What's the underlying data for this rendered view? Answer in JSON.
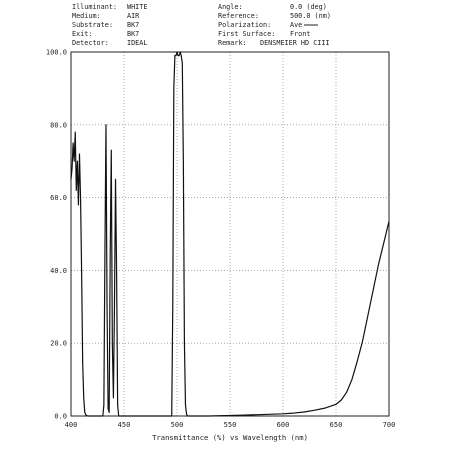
{
  "header": {
    "left": [
      {
        "label": "Illuminant:",
        "value": "WHITE"
      },
      {
        "label": "Medium:",
        "value": "AIR"
      },
      {
        "label": "Substrate:",
        "value": "BK7"
      },
      {
        "label": "Exit:",
        "value": "BK7"
      },
      {
        "label": "Detector:",
        "value": "IDEAL"
      }
    ],
    "right": [
      {
        "label": "Angle:",
        "value": "0.0 (deg)"
      },
      {
        "label": "Reference:",
        "value": "500.0 (nm)"
      },
      {
        "label": "Polarization:",
        "value": "Ave"
      },
      {
        "label": "First Surface:",
        "value": "Front"
      },
      {
        "label": "Remark:",
        "value": "DENSMEIER HD CIII"
      }
    ]
  },
  "chart_data": {
    "type": "line",
    "title": "",
    "xlabel": "Transmittance (%)   vs   Wavelength (nm)",
    "ylabel": "",
    "xlim": [
      400,
      700
    ],
    "ylim": [
      0,
      100
    ],
    "x_ticks": [
      "400",
      "450",
      "500",
      "550",
      "600",
      "650",
      "700"
    ],
    "y_ticks": [
      "0.0",
      "20.0",
      "40.0",
      "60.0",
      "80.0",
      "100.0"
    ],
    "grid": true,
    "grid_style": "dotted",
    "line_color": "#111111",
    "series": [
      {
        "name": "",
        "x": [
          400,
          401,
          402,
          403,
          404,
          405,
          406,
          407,
          408,
          409,
          410,
          411,
          412,
          413,
          414,
          415,
          416,
          418,
          420,
          423,
          426,
          430,
          431,
          432,
          433,
          434,
          435,
          436,
          437,
          438,
          439,
          440,
          441,
          442,
          443,
          444,
          445,
          450,
          470,
          490,
          495,
          496,
          497,
          498,
          499,
          500,
          501,
          502,
          503,
          504,
          505,
          506,
          507,
          508,
          509,
          510,
          515,
          530,
          560,
          580,
          600,
          610,
          620,
          630,
          640,
          650,
          655,
          660,
          665,
          670,
          675,
          680,
          685,
          690,
          695,
          700
        ],
        "y": [
          65,
          68,
          75,
          70,
          78,
          62,
          70,
          58,
          72,
          60,
          40,
          15,
          5,
          1,
          0.3,
          0.1,
          0,
          0,
          0,
          0,
          0,
          0,
          3,
          45,
          80,
          30,
          2,
          1,
          45,
          73,
          20,
          5,
          30,
          65,
          40,
          3,
          0,
          0,
          0,
          0,
          0,
          30,
          90,
          99,
          99,
          100,
          99,
          99,
          100,
          99,
          97,
          70,
          20,
          3,
          0.5,
          0,
          0,
          0,
          0.2,
          0.4,
          0.6,
          0.8,
          1.1,
          1.6,
          2.2,
          3.2,
          4.4,
          6.5,
          10,
          15,
          20.5,
          27.5,
          34.5,
          41.5,
          47.5,
          53.5
        ]
      }
    ]
  }
}
